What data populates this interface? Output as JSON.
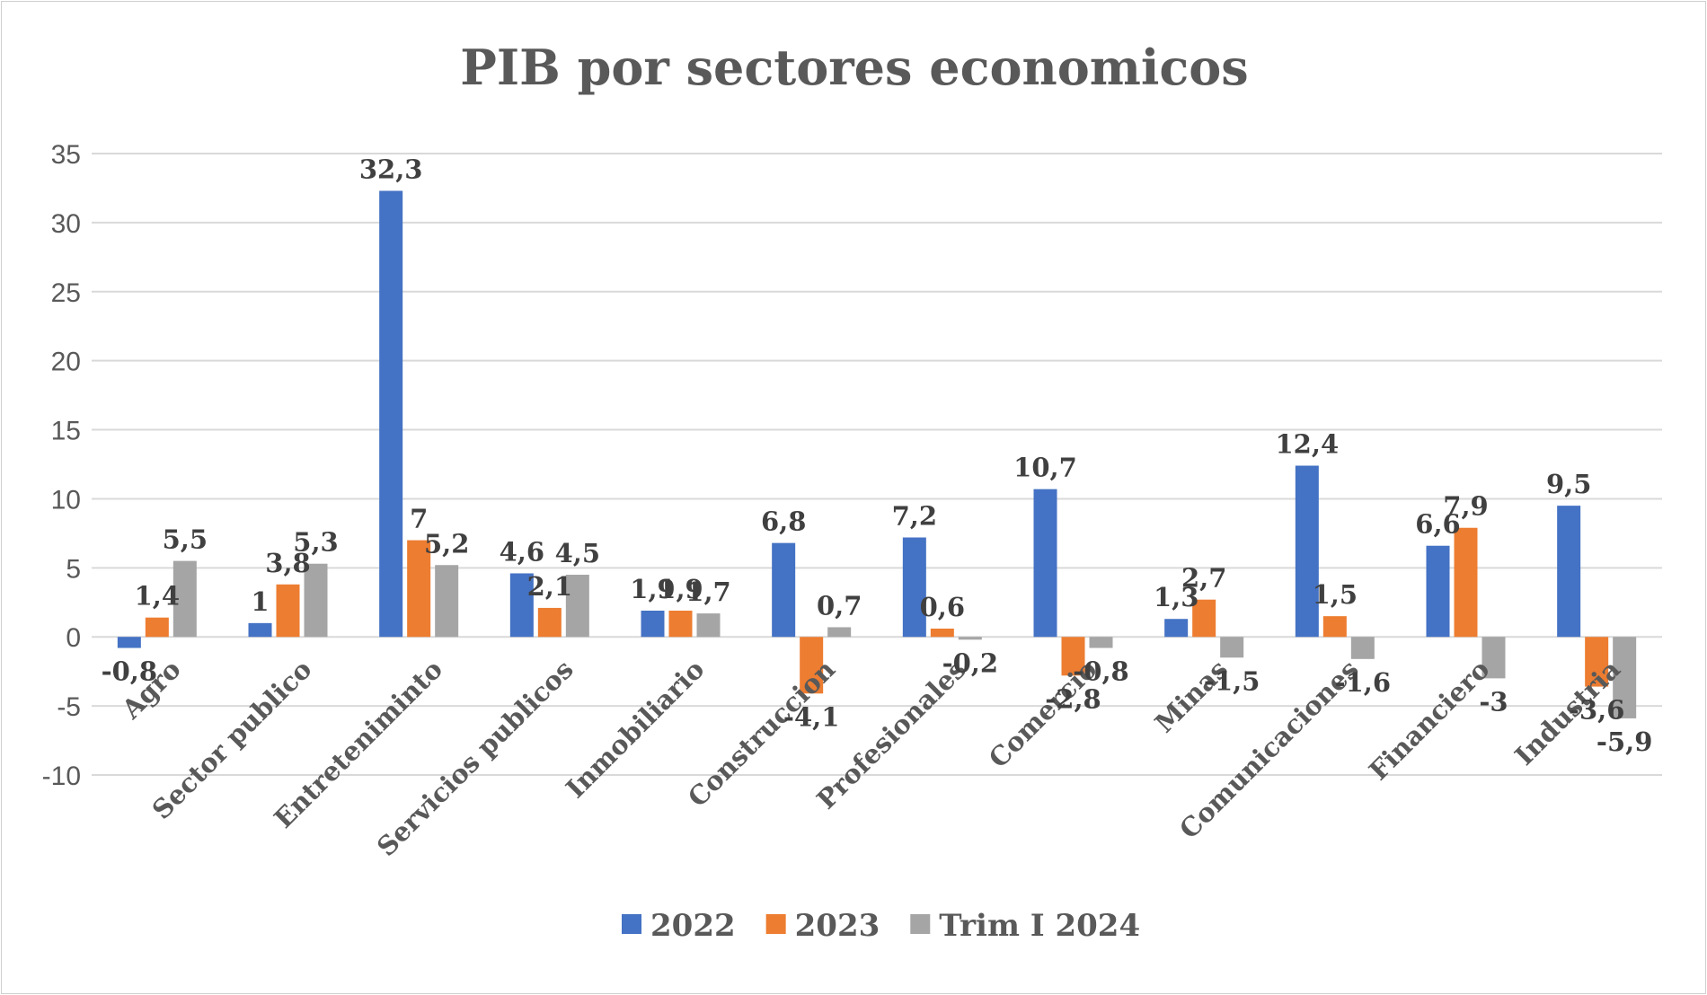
{
  "chart_data": {
    "type": "bar",
    "title": "PIB por sectores economicos",
    "xlabel": "",
    "ylabel": "",
    "ylim": [
      -10,
      35
    ],
    "yticks": [
      35,
      30,
      25,
      20,
      15,
      10,
      5,
      0,
      -5,
      -10
    ],
    "grid": true,
    "legend_position": "bottom",
    "categories": [
      "Agro",
      "Sector publico",
      "Entreteniminto",
      "Servicios publicos",
      "Inmobiliario",
      "Construccion",
      "Profesionales",
      "Comercio",
      "Minas",
      "Comunicaciones",
      "Financiero",
      "Industria"
    ],
    "series": [
      {
        "name": "2022",
        "color": "#4472C4",
        "values": [
          -0.8,
          1,
          32.3,
          4.6,
          1.9,
          6.8,
          7.2,
          10.7,
          1.3,
          12.4,
          6.6,
          9.5
        ],
        "labels": [
          "-0,8",
          "1",
          "32,3",
          "4,6",
          "1,9",
          "6,8",
          "7,2",
          "10,7",
          "1,3",
          "12,4",
          "6,6",
          "9,5"
        ]
      },
      {
        "name": "2023",
        "color": "#ED7D31",
        "values": [
          1.4,
          3.8,
          7,
          2.1,
          1.9,
          -4.1,
          0.6,
          -2.8,
          2.7,
          1.5,
          7.9,
          -3.6
        ],
        "labels": [
          "1,4",
          "3,8",
          "7",
          "2,1",
          "1,9",
          "-4,1",
          "0,6",
          "-2,8",
          "2,7",
          "1,5",
          "7,9",
          "-3,6"
        ]
      },
      {
        "name": "Trim I 2024",
        "color": "#A5A5A5",
        "values": [
          5.5,
          5.3,
          5.2,
          4.5,
          1.7,
          0.7,
          -0.2,
          -0.8,
          -1.5,
          -1.6,
          -3,
          -5.9
        ],
        "labels": [
          "5,5",
          "5,3",
          "5,2",
          "4,5",
          "1,7",
          "0,7",
          "-0,2",
          "-0,8",
          "-1,5",
          "-1,6",
          "-3",
          "-5,9"
        ]
      }
    ]
  }
}
